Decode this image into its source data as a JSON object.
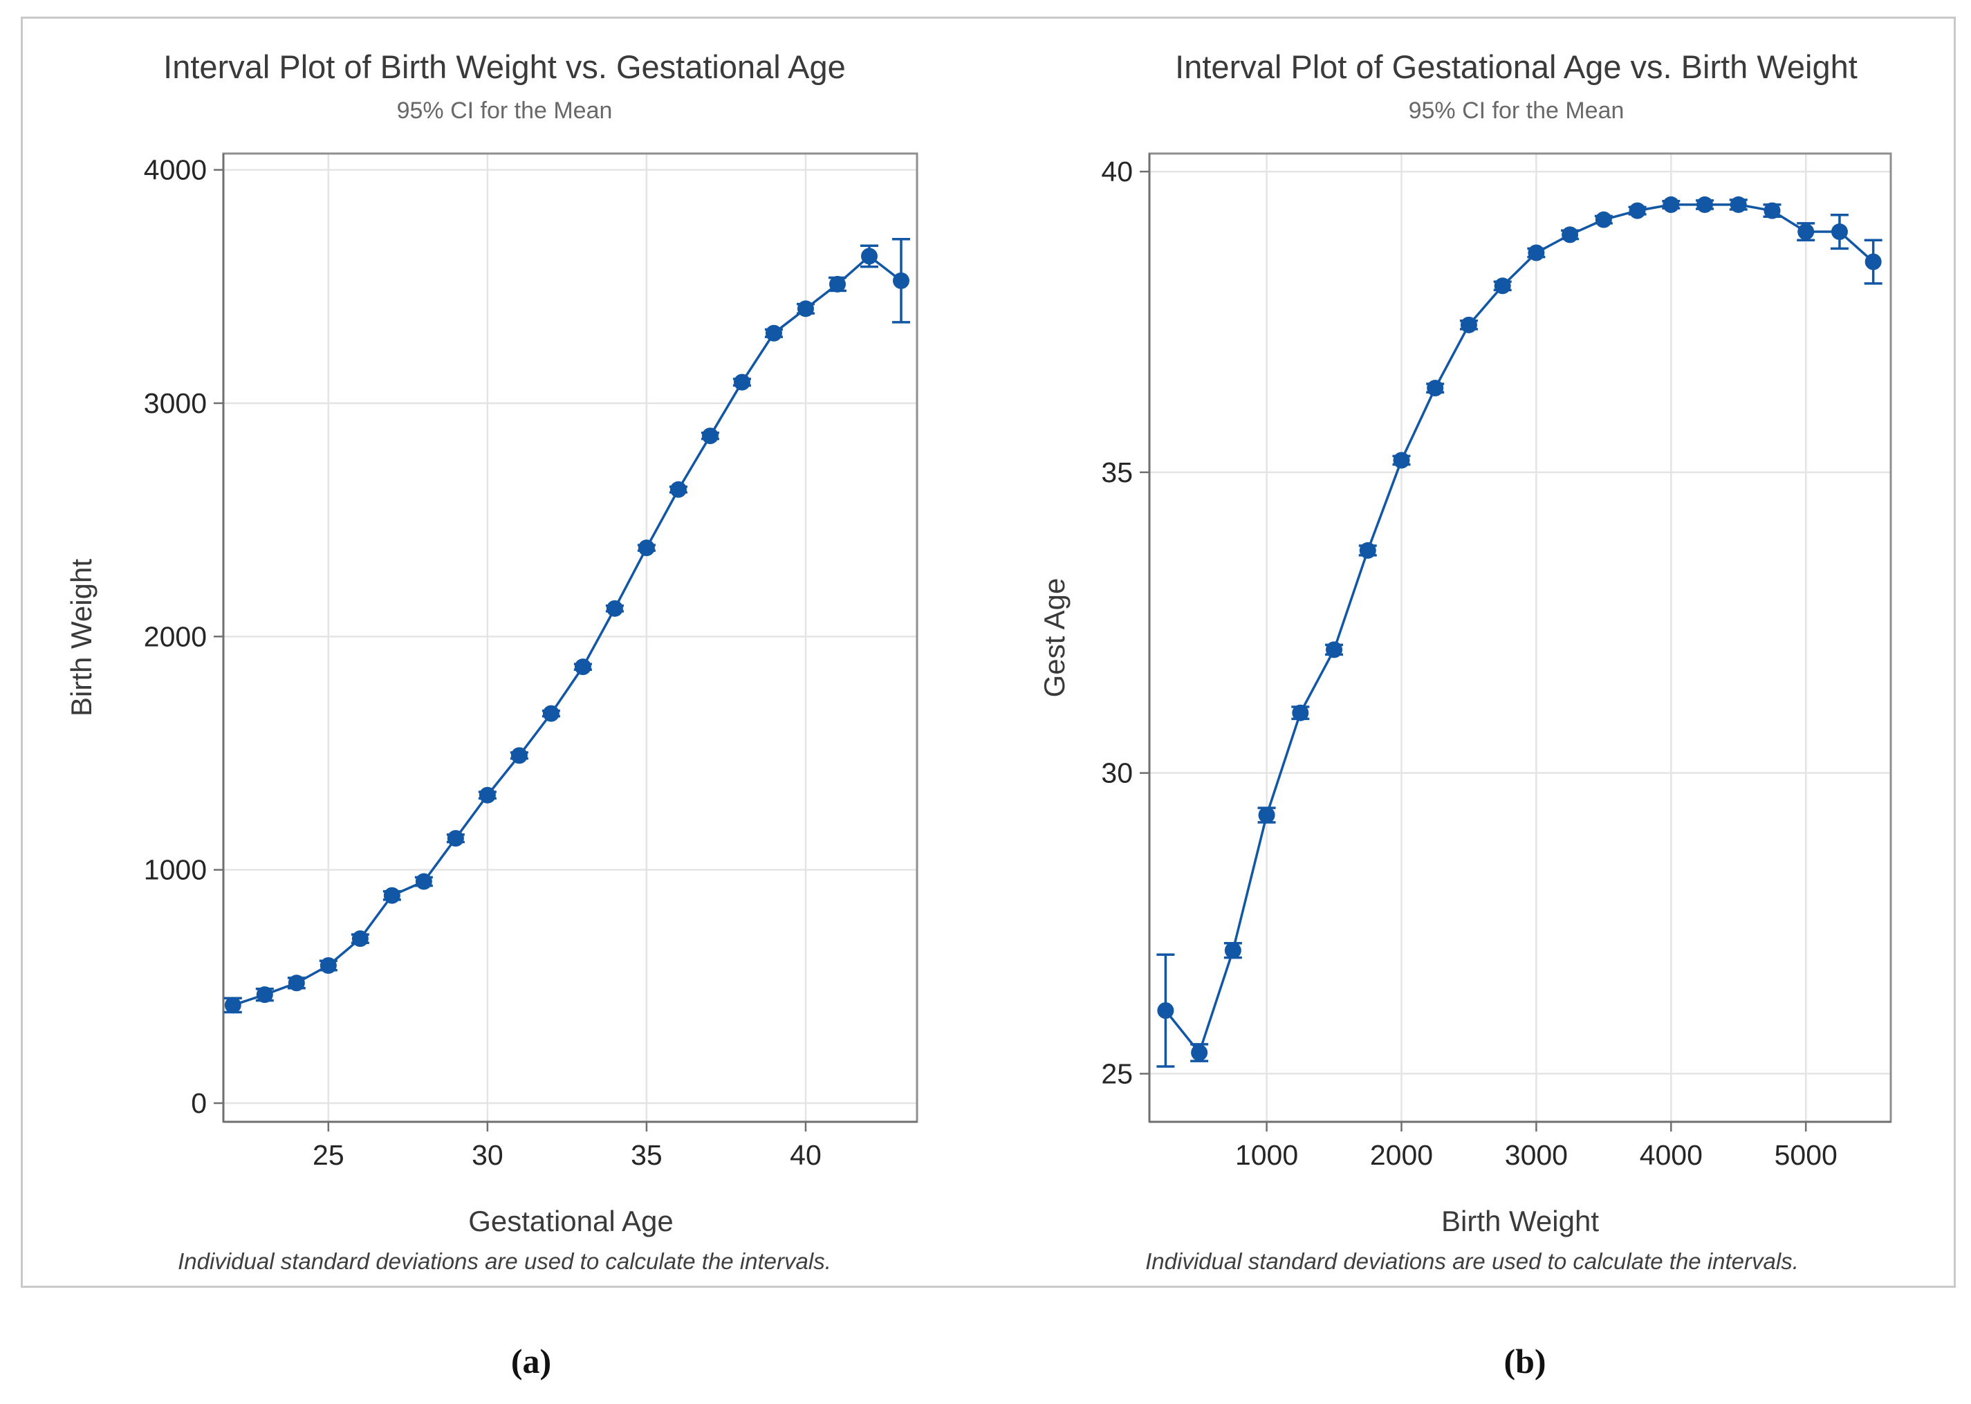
{
  "page": {
    "caption_a": "(a)",
    "caption_b": "(b)"
  },
  "colors": {
    "series_blue": "#1257A5",
    "gridline": "#e4e4e4",
    "frame_border": "#8f8f8f",
    "axis_line": "#6f6f6f",
    "tick_label": "#262626",
    "title_gray": "#3a3a3a",
    "subtitle_gray": "#686868",
    "card_border": "#c9c9c9"
  },
  "chart_data": [
    {
      "type": "line",
      "title": "Interval Plot of Birth Weight vs. Gestational Age",
      "subtitle": "95% CI for the Mean",
      "xlabel": "Gestational Age",
      "ylabel": "Birth Weight",
      "footnote": "Individual standard deviations are used to calculate the intervals.",
      "legend_position": "none",
      "grid": true,
      "xlim": [
        21.7,
        43.5
      ],
      "ylim": [
        -80,
        4070
      ],
      "x_ticks": [
        25,
        30,
        35,
        40
      ],
      "y_ticks": [
        0,
        1000,
        2000,
        3000,
        4000
      ],
      "x": [
        22,
        23,
        24,
        25,
        26,
        27,
        28,
        29,
        30,
        31,
        32,
        33,
        34,
        35,
        36,
        37,
        38,
        39,
        40,
        41,
        42,
        43
      ],
      "y": [
        420,
        465,
        515,
        590,
        705,
        890,
        950,
        1135,
        1320,
        1490,
        1670,
        1870,
        2120,
        2380,
        2630,
        2860,
        3090,
        3300,
        3405,
        3510,
        3630,
        3525
      ],
      "ci_half": [
        30,
        25,
        22,
        20,
        18,
        18,
        18,
        16,
        14,
        13,
        12,
        12,
        12,
        12,
        12,
        13,
        14,
        16,
        20,
        28,
        45,
        178
      ]
    },
    {
      "type": "line",
      "title": "Interval Plot of Gestational Age vs. Birth Weight",
      "subtitle": "95% CI for the Mean",
      "xlabel": "Birth Weight",
      "ylabel": "Gest Age",
      "footnote": "Individual standard deviations are used to calculate the intervals.",
      "legend_position": "none",
      "grid": true,
      "xlim": [
        130,
        5630
      ],
      "ylim": [
        24.2,
        40.3
      ],
      "x_ticks": [
        1000,
        2000,
        3000,
        4000,
        5000
      ],
      "y_ticks": [
        25,
        30,
        35,
        40
      ],
      "x": [
        250,
        500,
        750,
        1000,
        1250,
        1500,
        1750,
        2000,
        2250,
        2500,
        2750,
        3000,
        3250,
        3500,
        3750,
        4000,
        4250,
        4500,
        4750,
        5000,
        5250,
        5500
      ],
      "y": [
        26.05,
        25.35,
        27.05,
        29.3,
        31.0,
        32.05,
        33.7,
        35.2,
        36.4,
        37.45,
        38.1,
        38.65,
        38.95,
        39.2,
        39.35,
        39.45,
        39.45,
        39.45,
        39.35,
        39.0,
        39.0,
        38.5
      ],
      "ci_half": [
        0.93,
        0.14,
        0.12,
        0.12,
        0.1,
        0.08,
        0.08,
        0.07,
        0.07,
        0.07,
        0.07,
        0.07,
        0.07,
        0.06,
        0.06,
        0.06,
        0.07,
        0.08,
        0.1,
        0.14,
        0.28,
        0.36
      ]
    }
  ]
}
